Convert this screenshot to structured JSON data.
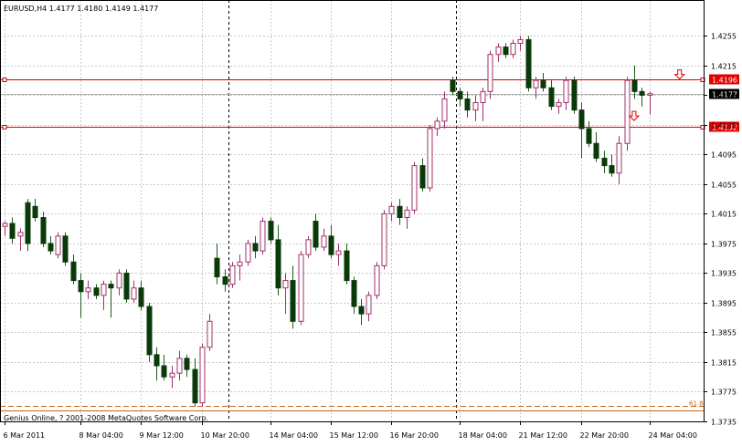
{
  "window": {
    "header_text": "EURUSD,H4  1.4177 1.4180 1.4149 1.4177",
    "footer_text": "Genius Online, ? 2001-2008 MetaQuotes Software Corp."
  },
  "colors": {
    "background": "#ffffff",
    "grid": "#c8c8c8",
    "bull_candle_fill": "#ffffff",
    "bull_candle_border": "#a0306a",
    "bear_candle_fill": "#0a3a0a",
    "bear_candle_border": "#0a3a0a",
    "wick_bull": "#a0306a",
    "wick_bear": "#1c5c1c",
    "resistance_line": "#e00000",
    "bid_line": "#b0b0b0",
    "fib_line": "#c86414",
    "price_tag_current": "#000000",
    "price_tag_level": "#e00000",
    "separator": "#000000"
  },
  "chart_data": {
    "type": "candlestick",
    "symbol": "EURUSD",
    "timeframe": "H4",
    "ohlc_header": {
      "open": 1.4177,
      "high": 1.418,
      "low": 1.4149,
      "close": 1.4177
    },
    "ylim": [
      1.3735,
      1.4285
    ],
    "y_ticks": [
      "1.4255",
      "1.4215",
      "1.4175",
      "1.4135",
      "1.4095",
      "1.4055",
      "1.4015",
      "1.3975",
      "1.3935",
      "1.3895",
      "1.3855",
      "1.3815",
      "1.3775",
      "1.3735"
    ],
    "x_ticks": [
      {
        "label": "6 Mar 2011",
        "index": 0
      },
      {
        "label": "8 Mar 04:00",
        "index": 10
      },
      {
        "label": "9 Mar 12:00",
        "index": 18
      },
      {
        "label": "10 Mar 20:00",
        "index": 26
      },
      {
        "label": "14 Mar 04:00",
        "index": 35
      },
      {
        "label": "15 Mar 12:00",
        "index": 43
      },
      {
        "label": "16 Mar 20:00",
        "index": 51
      },
      {
        "label": "18 Mar 04:00",
        "index": 60
      },
      {
        "label": "21 Mar 12:00",
        "index": 68
      },
      {
        "label": "22 Mar 20:00",
        "index": 76
      },
      {
        "label": "24 Mar 04:00",
        "index": 85
      }
    ],
    "period_separators_index": [
      30,
      60
    ],
    "grid": true,
    "horizontal_levels": [
      {
        "label": "1.4196",
        "value": 1.4196,
        "style": "resistance"
      },
      {
        "label": "1.4132",
        "value": 1.4132,
        "style": "resistance"
      }
    ],
    "current_price": {
      "label": "1.4177",
      "value": 1.4177
    },
    "fib_level": {
      "label": "61.8",
      "value": 1.37565
    },
    "arrows": [
      {
        "index": 89,
        "value": 1.4203,
        "direction": "down"
      },
      {
        "index": 83,
        "value": 1.4147,
        "direction": "down"
      }
    ],
    "candles": [
      {
        "o": 1.3998,
        "h": 1.4005,
        "l": 1.3985,
        "c": 1.4002
      },
      {
        "o": 1.4002,
        "h": 1.401,
        "l": 1.3975,
        "c": 1.3982
      },
      {
        "o": 1.3985,
        "h": 1.3995,
        "l": 1.3965,
        "c": 1.399
      },
      {
        "o": 1.403,
        "h": 1.4035,
        "l": 1.3965,
        "c": 1.3975
      },
      {
        "o": 1.4025,
        "h": 1.4035,
        "l": 1.4005,
        "c": 1.401
      },
      {
        "o": 1.401,
        "h": 1.4018,
        "l": 1.397,
        "c": 1.3975
      },
      {
        "o": 1.3975,
        "h": 1.3985,
        "l": 1.396,
        "c": 1.3965
      },
      {
        "o": 1.396,
        "h": 1.399,
        "l": 1.3955,
        "c": 1.3985
      },
      {
        "o": 1.3985,
        "h": 1.399,
        "l": 1.3945,
        "c": 1.395
      },
      {
        "o": 1.395,
        "h": 1.396,
        "l": 1.392,
        "c": 1.3925
      },
      {
        "o": 1.3925,
        "h": 1.3935,
        "l": 1.3875,
        "c": 1.391
      },
      {
        "o": 1.391,
        "h": 1.3925,
        "l": 1.39,
        "c": 1.3915
      },
      {
        "o": 1.3915,
        "h": 1.392,
        "l": 1.39,
        "c": 1.3905
      },
      {
        "o": 1.3905,
        "h": 1.3925,
        "l": 1.3885,
        "c": 1.392
      },
      {
        "o": 1.392,
        "h": 1.3925,
        "l": 1.3875,
        "c": 1.3915
      },
      {
        "o": 1.3915,
        "h": 1.394,
        "l": 1.3905,
        "c": 1.3935
      },
      {
        "o": 1.3935,
        "h": 1.394,
        "l": 1.3895,
        "c": 1.39
      },
      {
        "o": 1.39,
        "h": 1.3925,
        "l": 1.3895,
        "c": 1.3915
      },
      {
        "o": 1.3915,
        "h": 1.3925,
        "l": 1.3885,
        "c": 1.389
      },
      {
        "o": 1.389,
        "h": 1.3895,
        "l": 1.3815,
        "c": 1.3825
      },
      {
        "o": 1.3825,
        "h": 1.3835,
        "l": 1.379,
        "c": 1.381
      },
      {
        "o": 1.381,
        "h": 1.3825,
        "l": 1.379,
        "c": 1.3795
      },
      {
        "o": 1.3795,
        "h": 1.381,
        "l": 1.378,
        "c": 1.38
      },
      {
        "o": 1.38,
        "h": 1.383,
        "l": 1.379,
        "c": 1.382
      },
      {
        "o": 1.382,
        "h": 1.3825,
        "l": 1.3795,
        "c": 1.3805
      },
      {
        "o": 1.3805,
        "h": 1.382,
        "l": 1.3755,
        "c": 1.376
      },
      {
        "o": 1.376,
        "h": 1.384,
        "l": 1.3755,
        "c": 1.3835
      },
      {
        "o": 1.3835,
        "h": 1.388,
        "l": 1.383,
        "c": 1.387
      },
      {
        "o": 1.3955,
        "h": 1.3975,
        "l": 1.392,
        "c": 1.393
      },
      {
        "o": 1.393,
        "h": 1.394,
        "l": 1.391,
        "c": 1.392
      },
      {
        "o": 1.392,
        "h": 1.395,
        "l": 1.3915,
        "c": 1.3945
      },
      {
        "o": 1.3945,
        "h": 1.396,
        "l": 1.3925,
        "c": 1.395
      },
      {
        "o": 1.395,
        "h": 1.398,
        "l": 1.3945,
        "c": 1.3975
      },
      {
        "o": 1.3975,
        "h": 1.3985,
        "l": 1.3955,
        "c": 1.3965
      },
      {
        "o": 1.3965,
        "h": 1.401,
        "l": 1.396,
        "c": 1.4005
      },
      {
        "o": 1.4005,
        "h": 1.401,
        "l": 1.3975,
        "c": 1.398
      },
      {
        "o": 1.398,
        "h": 1.4,
        "l": 1.3905,
        "c": 1.3915
      },
      {
        "o": 1.3915,
        "h": 1.3935,
        "l": 1.388,
        "c": 1.3925
      },
      {
        "o": 1.3925,
        "h": 1.3945,
        "l": 1.386,
        "c": 1.387
      },
      {
        "o": 1.387,
        "h": 1.3965,
        "l": 1.3865,
        "c": 1.396
      },
      {
        "o": 1.396,
        "h": 1.3985,
        "l": 1.3955,
        "c": 1.398
      },
      {
        "o": 1.4005,
        "h": 1.4015,
        "l": 1.3965,
        "c": 1.397
      },
      {
        "o": 1.397,
        "h": 1.3995,
        "l": 1.3965,
        "c": 1.3985
      },
      {
        "o": 1.3985,
        "h": 1.4,
        "l": 1.3955,
        "c": 1.396
      },
      {
        "o": 1.396,
        "h": 1.3975,
        "l": 1.3945,
        "c": 1.3965
      },
      {
        "o": 1.3965,
        "h": 1.3975,
        "l": 1.392,
        "c": 1.3925
      },
      {
        "o": 1.3925,
        "h": 1.393,
        "l": 1.388,
        "c": 1.389
      },
      {
        "o": 1.389,
        "h": 1.39,
        "l": 1.3865,
        "c": 1.388
      },
      {
        "o": 1.388,
        "h": 1.391,
        "l": 1.387,
        "c": 1.3905
      },
      {
        "o": 1.3905,
        "h": 1.395,
        "l": 1.39,
        "c": 1.3945
      },
      {
        "o": 1.3945,
        "h": 1.402,
        "l": 1.394,
        "c": 1.4015
      },
      {
        "o": 1.4015,
        "h": 1.403,
        "l": 1.4005,
        "c": 1.4025
      },
      {
        "o": 1.4025,
        "h": 1.4035,
        "l": 1.4,
        "c": 1.401
      },
      {
        "o": 1.401,
        "h": 1.4025,
        "l": 1.3995,
        "c": 1.402
      },
      {
        "o": 1.402,
        "h": 1.4085,
        "l": 1.4015,
        "c": 1.408
      },
      {
        "o": 1.408,
        "h": 1.409,
        "l": 1.4045,
        "c": 1.405
      },
      {
        "o": 1.405,
        "h": 1.4135,
        "l": 1.4045,
        "c": 1.413
      },
      {
        "o": 1.413,
        "h": 1.4145,
        "l": 1.412,
        "c": 1.414
      },
      {
        "o": 1.414,
        "h": 1.418,
        "l": 1.413,
        "c": 1.417
      },
      {
        "o": 1.4195,
        "h": 1.42,
        "l": 1.4175,
        "c": 1.418
      },
      {
        "o": 1.418,
        "h": 1.4185,
        "l": 1.416,
        "c": 1.417
      },
      {
        "o": 1.417,
        "h": 1.418,
        "l": 1.4145,
        "c": 1.4155
      },
      {
        "o": 1.4155,
        "h": 1.4175,
        "l": 1.414,
        "c": 1.4165
      },
      {
        "o": 1.4165,
        "h": 1.4185,
        "l": 1.414,
        "c": 1.418
      },
      {
        "o": 1.418,
        "h": 1.4235,
        "l": 1.417,
        "c": 1.423
      },
      {
        "o": 1.423,
        "h": 1.4245,
        "l": 1.422,
        "c": 1.424
      },
      {
        "o": 1.424,
        "h": 1.4245,
        "l": 1.4225,
        "c": 1.423
      },
      {
        "o": 1.423,
        "h": 1.425,
        "l": 1.4225,
        "c": 1.4245
      },
      {
        "o": 1.4245,
        "h": 1.4255,
        "l": 1.4235,
        "c": 1.425
      },
      {
        "o": 1.425,
        "h": 1.4255,
        "l": 1.418,
        "c": 1.4185
      },
      {
        "o": 1.4185,
        "h": 1.42,
        "l": 1.417,
        "c": 1.4195
      },
      {
        "o": 1.4195,
        "h": 1.4205,
        "l": 1.418,
        "c": 1.4185
      },
      {
        "o": 1.4185,
        "h": 1.4195,
        "l": 1.4155,
        "c": 1.416
      },
      {
        "o": 1.416,
        "h": 1.417,
        "l": 1.415,
        "c": 1.4165
      },
      {
        "o": 1.4165,
        "h": 1.42,
        "l": 1.4155,
        "c": 1.4195
      },
      {
        "o": 1.4195,
        "h": 1.42,
        "l": 1.415,
        "c": 1.4155
      },
      {
        "o": 1.4155,
        "h": 1.4165,
        "l": 1.409,
        "c": 1.413
      },
      {
        "o": 1.413,
        "h": 1.414,
        "l": 1.4105,
        "c": 1.411
      },
      {
        "o": 1.411,
        "h": 1.4125,
        "l": 1.4085,
        "c": 1.409
      },
      {
        "o": 1.409,
        "h": 1.41,
        "l": 1.407,
        "c": 1.408
      },
      {
        "o": 1.408,
        "h": 1.4095,
        "l": 1.4065,
        "c": 1.407
      },
      {
        "o": 1.407,
        "h": 1.412,
        "l": 1.4055,
        "c": 1.411
      },
      {
        "o": 1.411,
        "h": 1.42,
        "l": 1.41,
        "c": 1.4195
      },
      {
        "o": 1.4195,
        "h": 1.4215,
        "l": 1.417,
        "c": 1.418
      },
      {
        "o": 1.418,
        "h": 1.4185,
        "l": 1.416,
        "c": 1.4175
      },
      {
        "o": 1.4175,
        "h": 1.418,
        "l": 1.4149,
        "c": 1.4177
      }
    ]
  }
}
